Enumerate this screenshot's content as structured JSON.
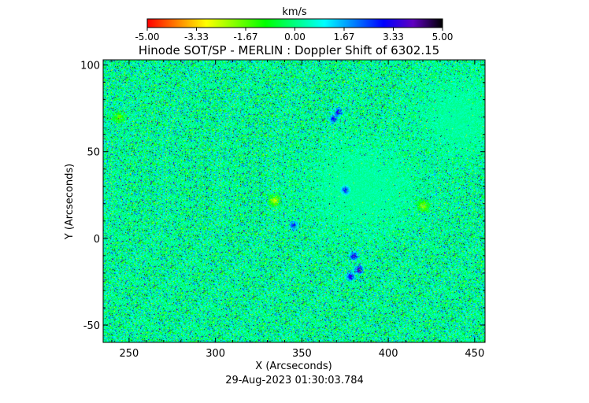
{
  "chart_data": {
    "type": "heatmap",
    "title": "Hinode SOT/SP - MERLIN : Doppler Shift of 6302.15",
    "subtitle": "29-Aug-2023 01:30:03.784",
    "xlabel": "X (Arcseconds)",
    "ylabel": "Y (Arcseconds)",
    "xlim": [
      235,
      456
    ],
    "ylim": [
      -60,
      103
    ],
    "xticks": [
      250,
      300,
      350,
      400,
      450
    ],
    "yticks": [
      -50,
      0,
      50,
      100
    ],
    "colorbar": {
      "label": "km/s",
      "range": [
        -5.0,
        5.0
      ],
      "ticks": [
        "-5.00",
        "-3.33",
        "-1.67",
        "0.00",
        "1.67",
        "3.33",
        "5.00"
      ],
      "colors": [
        "#ff0000",
        "#ff8000",
        "#ffff00",
        "#80ff00",
        "#00ff00",
        "#00ff80",
        "#00ffff",
        "#0080ff",
        "#0000ff",
        "#6000c0",
        "#000000"
      ]
    },
    "features": [
      {
        "type": "quiet-disk",
        "x": 385,
        "y": 30,
        "rx": 42,
        "ry": 34,
        "value": 0.0
      },
      {
        "type": "quiet-disk",
        "x": 440,
        "y": 70,
        "rx": 30,
        "ry": 30,
        "value": 0.2
      },
      {
        "type": "blue-patch",
        "x": 371,
        "y": 73,
        "value": 3.6
      },
      {
        "type": "blue-patch",
        "x": 368,
        "y": 69,
        "value": 3.2
      },
      {
        "type": "blue-patch",
        "x": 375,
        "y": 28,
        "value": 3.0
      },
      {
        "type": "blue-patch",
        "x": 380,
        "y": -10,
        "value": 3.8
      },
      {
        "type": "blue-patch",
        "x": 383,
        "y": -18,
        "value": 4.2
      },
      {
        "type": "blue-patch",
        "x": 378,
        "y": -22,
        "value": 3.5
      },
      {
        "type": "blue-patch",
        "x": 345,
        "y": 8,
        "value": 3.0
      },
      {
        "type": "red-patch",
        "x": 334,
        "y": 22,
        "value": -2.5
      },
      {
        "type": "red-patch",
        "x": 420,
        "y": 19,
        "value": -2.2
      },
      {
        "type": "red-patch",
        "x": 244,
        "y": 70,
        "value": -1.8
      }
    ]
  }
}
